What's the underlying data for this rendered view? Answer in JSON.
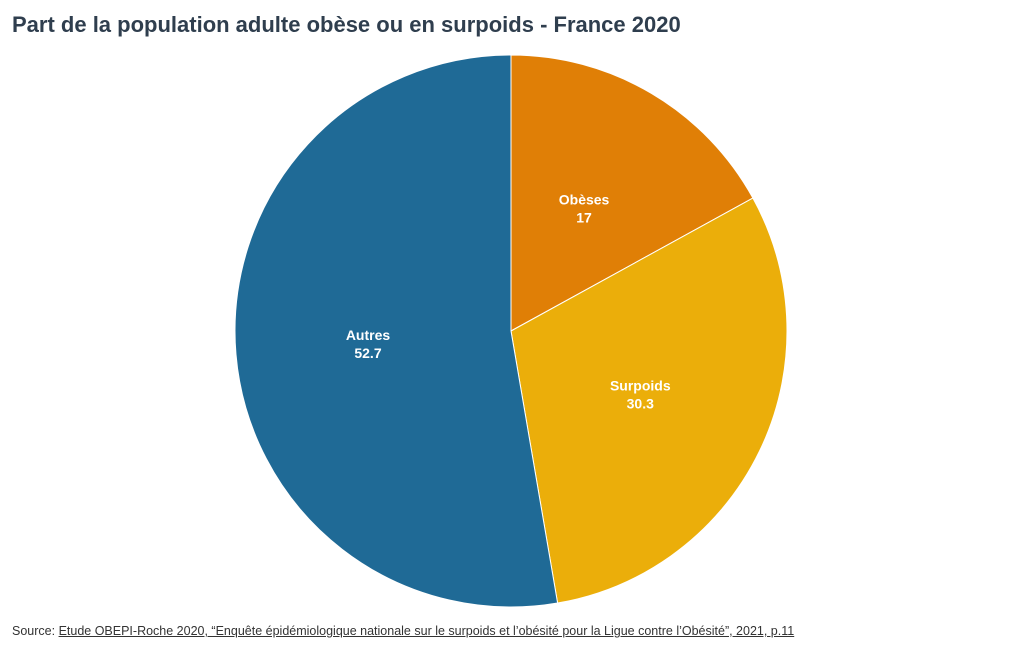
{
  "chart_data": {
    "type": "pie",
    "title": "Part de la population adulte obèse ou en surpoids - France 2020",
    "categories": [
      "Obèses",
      "Surpoids",
      "Autres"
    ],
    "values": [
      17,
      30.3,
      52.7
    ],
    "colors": [
      "#e07f06",
      "#ebae0a",
      "#1f6a96"
    ],
    "data_labels": [
      "17",
      "30.3",
      "52.7"
    ],
    "start_angle_deg": 0,
    "direction": "clockwise",
    "legend": "none"
  },
  "footer": {
    "prefix": "Source: ",
    "link_text": "Etude OBEPI-Roche 2020, “Enquête épidémiologique nationale sur le surpoids et l’obésité pour la Ligue contre l’Obésité”, 2021, p.11"
  }
}
